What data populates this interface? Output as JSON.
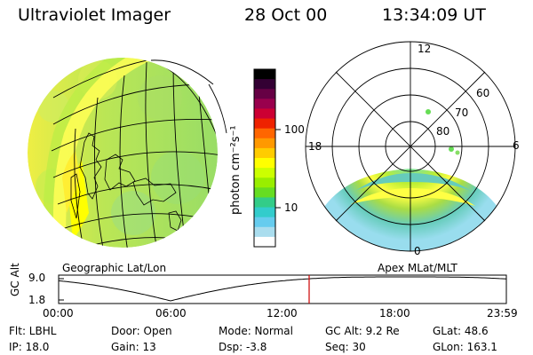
{
  "header": {
    "instrument": "Ultraviolet Imager",
    "date": "28 Oct 00",
    "time": "13:34:09 UT"
  },
  "geo_panel": {
    "label": "Geographic Lat/Lon"
  },
  "polar_panel": {
    "label": "Apex MLat/MLT",
    "mlt_labels": [
      "12",
      "18",
      "6",
      "0"
    ],
    "lat_labels": [
      "60",
      "70",
      "80"
    ]
  },
  "colorbar": {
    "unit_label": "photon cm⁻²s⁻¹",
    "ticks": [
      "100",
      "10"
    ],
    "colors": [
      "#000000",
      "#330033",
      "#660044",
      "#99004d",
      "#cc0033",
      "#ee2200",
      "#ff6600",
      "#ff9900",
      "#ffcc00",
      "#ffff00",
      "#ccff00",
      "#99ee00",
      "#66dd22",
      "#33cc88",
      "#33cccc",
      "#66ccee",
      "#aaddee",
      "#ffffff"
    ]
  },
  "timeline": {
    "axis_title": "GC Alt",
    "y_ticks": [
      "9.0",
      "1.8"
    ],
    "x_ticks": [
      "00:00",
      "06:00",
      "12:00",
      "18:00",
      "23:59"
    ],
    "marker_color": "#cc0000"
  },
  "status": {
    "flt": "Flt: LBHL",
    "ip": "IP: 18.0",
    "door": "Door: Open",
    "gain": "Gain: 13",
    "mode": "Mode: Normal",
    "dsp": "Dsp:   -3.8",
    "gc_alt": "GC Alt: 9.2 Re",
    "seq": "Seq: 30",
    "glat": "GLat:  48.6",
    "glon": "GLon: 163.1"
  }
}
